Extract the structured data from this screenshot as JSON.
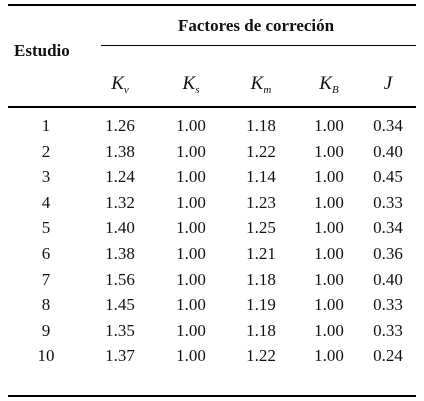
{
  "table": {
    "stub_header": "Estudio",
    "group_header": "Factores de correción",
    "columns": [
      {
        "base": "K",
        "sub": "v"
      },
      {
        "base": "K",
        "sub": "s"
      },
      {
        "base": "K",
        "sub": "m"
      },
      {
        "base": "K",
        "sub": "B"
      },
      {
        "base": "J",
        "sub": ""
      }
    ],
    "rows": [
      {
        "estudio": "1",
        "values": [
          "1.26",
          "1.00",
          "1.18",
          "1.00",
          "0.34"
        ]
      },
      {
        "estudio": "2",
        "values": [
          "1.38",
          "1.00",
          "1.22",
          "1.00",
          "0.40"
        ]
      },
      {
        "estudio": "3",
        "values": [
          "1.24",
          "1.00",
          "1.14",
          "1.00",
          "0.45"
        ]
      },
      {
        "estudio": "4",
        "values": [
          "1.32",
          "1.00",
          "1.23",
          "1.00",
          "0.33"
        ]
      },
      {
        "estudio": "5",
        "values": [
          "1.40",
          "1.00",
          "1.25",
          "1.00",
          "0.34"
        ]
      },
      {
        "estudio": "6",
        "values": [
          "1.38",
          "1.00",
          "1.21",
          "1.00",
          "0.36"
        ]
      },
      {
        "estudio": "7",
        "values": [
          "1.56",
          "1.00",
          "1.18",
          "1.00",
          "0.40"
        ]
      },
      {
        "estudio": "8",
        "values": [
          "1.45",
          "1.00",
          "1.19",
          "1.00",
          "0.33"
        ]
      },
      {
        "estudio": "9",
        "values": [
          "1.35",
          "1.00",
          "1.18",
          "1.00",
          "0.33"
        ]
      },
      {
        "estudio": "10",
        "values": [
          "1.37",
          "1.00",
          "1.22",
          "1.00",
          "0.24"
        ]
      }
    ]
  }
}
